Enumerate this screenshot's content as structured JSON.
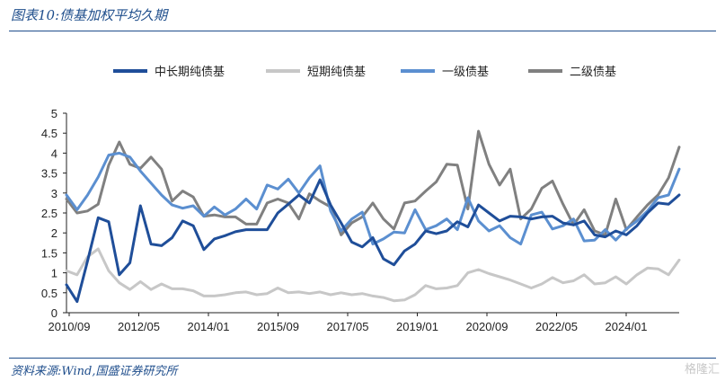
{
  "header": {
    "title": "图表10:债基加权平均久期"
  },
  "footer": {
    "source": "资料来源:Wind,国盛证券研究所",
    "watermark": "格隆汇"
  },
  "chart_data": {
    "type": "line",
    "title": "",
    "xlabel": "",
    "ylabel": "",
    "ylim": [
      0,
      5
    ],
    "yticks": [
      "0",
      "0.5",
      "1",
      "1.5",
      "2",
      "2.5",
      "3",
      "3.5",
      "4",
      "4.5",
      "5"
    ],
    "xticks": [
      "2010/09",
      "2012/05",
      "2014/01",
      "2015/09",
      "2017/05",
      "2019/01",
      "2020/09",
      "2022/05",
      "2024/01"
    ],
    "legend_position": "top",
    "grid": false,
    "colors": {
      "中长期纯债基": "#1f4e99",
      "短期纯债基": "#c7c7c7",
      "一级债基": "#5b8fd0",
      "二级债基": "#808080"
    },
    "series": [
      {
        "name": "中长期纯债基",
        "values": [
          0.7,
          0.28,
          1.3,
          2.38,
          2.28,
          0.95,
          1.25,
          2.68,
          1.72,
          1.68,
          1.88,
          2.3,
          2.18,
          1.58,
          1.85,
          1.93,
          2.03,
          2.08,
          2.08,
          2.08,
          2.5,
          2.72,
          2.95,
          2.75,
          3.33,
          2.7,
          2.25,
          1.77,
          1.65,
          1.88,
          1.35,
          1.2,
          1.55,
          1.72,
          2.05,
          1.98,
          2.05,
          2.28,
          2.15,
          2.7,
          2.5,
          2.3,
          2.42,
          2.4,
          2.35,
          2.4,
          2.42,
          2.25,
          2.2,
          2.3,
          1.95,
          1.9,
          2.05,
          1.95,
          2.18,
          2.5,
          2.75,
          2.72,
          2.95
        ]
      },
      {
        "name": "短期纯债基",
        "values": [
          1.05,
          0.95,
          1.4,
          1.6,
          1.05,
          0.75,
          0.58,
          0.78,
          0.58,
          0.72,
          0.6,
          0.6,
          0.55,
          0.42,
          0.42,
          0.45,
          0.5,
          0.52,
          0.45,
          0.48,
          0.62,
          0.5,
          0.52,
          0.48,
          0.52,
          0.45,
          0.5,
          0.45,
          0.48,
          0.42,
          0.38,
          0.3,
          0.32,
          0.45,
          0.68,
          0.6,
          0.62,
          0.68,
          1.0,
          1.08,
          0.98,
          0.9,
          0.82,
          0.72,
          0.62,
          0.72,
          0.88,
          0.75,
          0.8,
          0.95,
          0.72,
          0.75,
          0.9,
          0.72,
          0.95,
          1.12,
          1.1,
          0.95,
          1.32
        ]
      },
      {
        "name": "一级债基",
        "values": [
          2.95,
          2.58,
          2.95,
          3.4,
          3.95,
          4.0,
          3.9,
          3.55,
          3.25,
          2.95,
          2.7,
          2.62,
          2.68,
          2.42,
          2.65,
          2.45,
          2.6,
          2.85,
          2.6,
          3.2,
          3.1,
          3.35,
          3.0,
          3.38,
          3.68,
          2.55,
          2.05,
          2.35,
          2.52,
          1.72,
          1.85,
          2.02,
          2.0,
          2.58,
          2.08,
          2.18,
          2.35,
          2.08,
          2.88,
          2.3,
          2.05,
          2.18,
          1.88,
          1.72,
          2.45,
          2.52,
          2.1,
          2.18,
          2.35,
          1.8,
          1.82,
          2.08,
          1.82,
          2.1,
          2.3,
          2.55,
          2.88,
          2.95,
          3.6
        ]
      },
      {
        "name": "二级债基",
        "values": [
          2.85,
          2.5,
          2.55,
          2.72,
          3.7,
          4.28,
          3.72,
          3.62,
          3.9,
          3.6,
          2.8,
          3.05,
          2.9,
          2.42,
          2.45,
          2.4,
          2.4,
          2.22,
          2.22,
          2.75,
          2.85,
          2.75,
          2.35,
          2.98,
          2.8,
          2.65,
          1.95,
          2.25,
          2.4,
          2.75,
          2.35,
          2.1,
          2.75,
          2.8,
          3.05,
          3.28,
          3.72,
          3.7,
          2.6,
          4.55,
          3.72,
          3.2,
          3.6,
          2.35,
          2.6,
          3.12,
          3.3,
          2.72,
          2.2,
          2.58,
          2.05,
          1.95,
          2.85,
          2.08,
          2.4,
          2.7,
          2.95,
          3.38,
          4.15
        ]
      }
    ]
  }
}
